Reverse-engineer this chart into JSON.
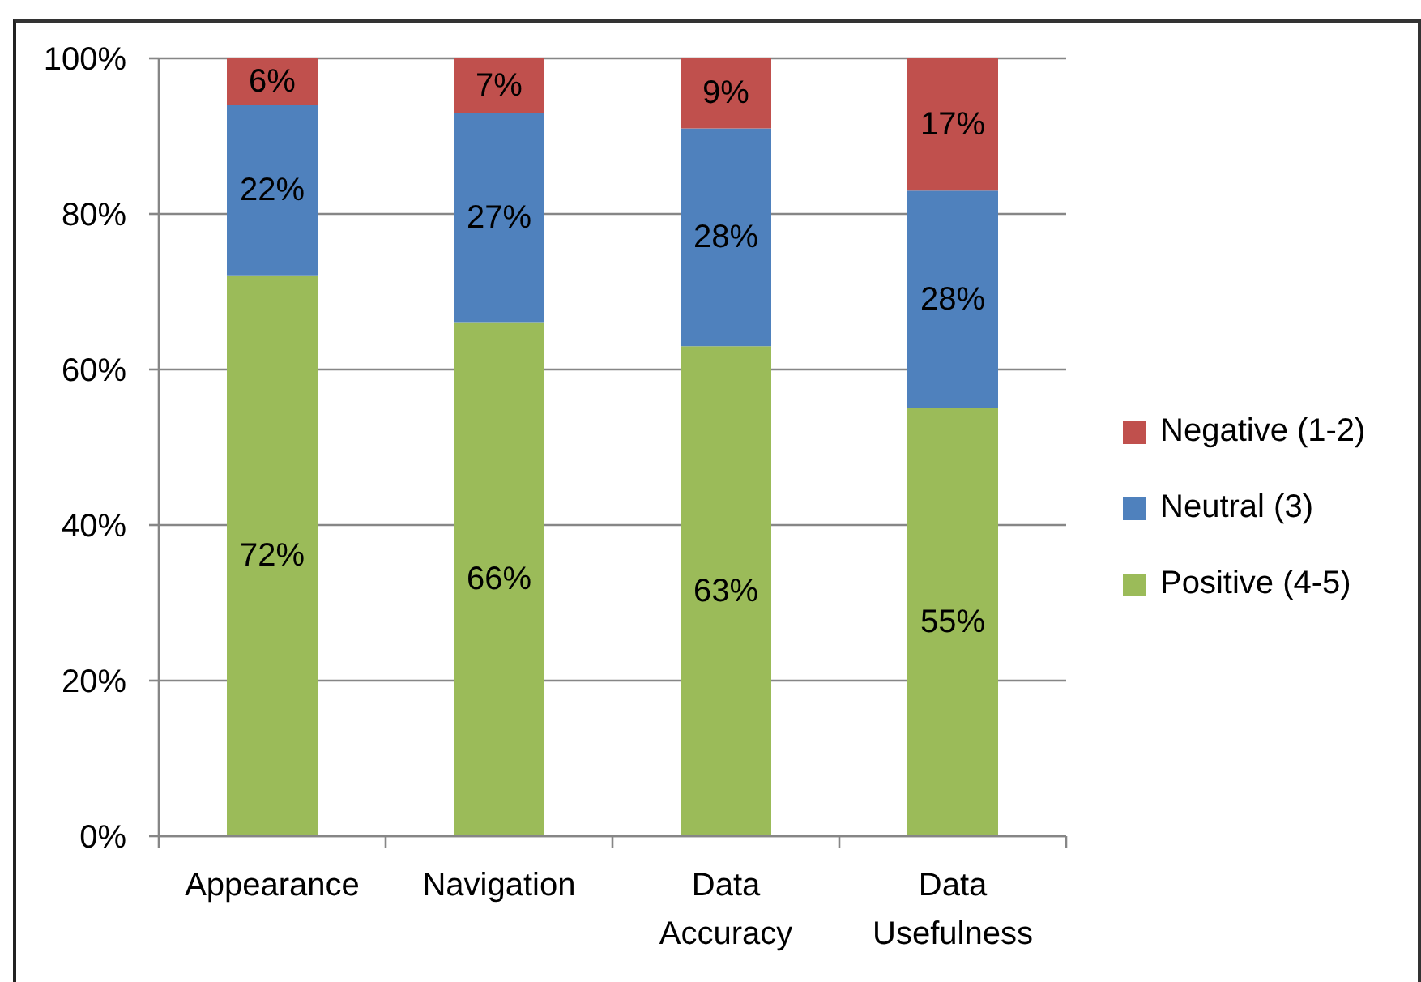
{
  "chart_data": {
    "type": "bar",
    "stacked": true,
    "categories": [
      "Appearance",
      "Navigation",
      "Data Accuracy",
      "Data Usefulness"
    ],
    "series": [
      {
        "name": "Positive (4-5)",
        "color": "#9bbb59",
        "values": [
          72,
          66,
          63,
          55
        ],
        "value_labels": [
          "72%",
          "66%",
          "63%",
          "55%"
        ]
      },
      {
        "name": "Neutral (3)",
        "color": "#4f81bd",
        "values": [
          22,
          27,
          28,
          28
        ],
        "value_labels": [
          "22%",
          "27%",
          "28%",
          "28%"
        ]
      },
      {
        "name": "Negative (1-2)",
        "color": "#c0504d",
        "values": [
          6,
          7,
          9,
          17
        ],
        "value_labels": [
          "6%",
          "7%",
          "9%",
          "17%"
        ]
      }
    ],
    "ylim": [
      0,
      100
    ],
    "yticks": [
      {
        "value": 0,
        "label": "0%"
      },
      {
        "value": 20,
        "label": "20%"
      },
      {
        "value": 40,
        "label": "40%"
      },
      {
        "value": 60,
        "label": "60%"
      },
      {
        "value": 80,
        "label": "80%"
      },
      {
        "value": 100,
        "label": "100%"
      }
    ],
    "grid": "y",
    "legend": "right"
  }
}
